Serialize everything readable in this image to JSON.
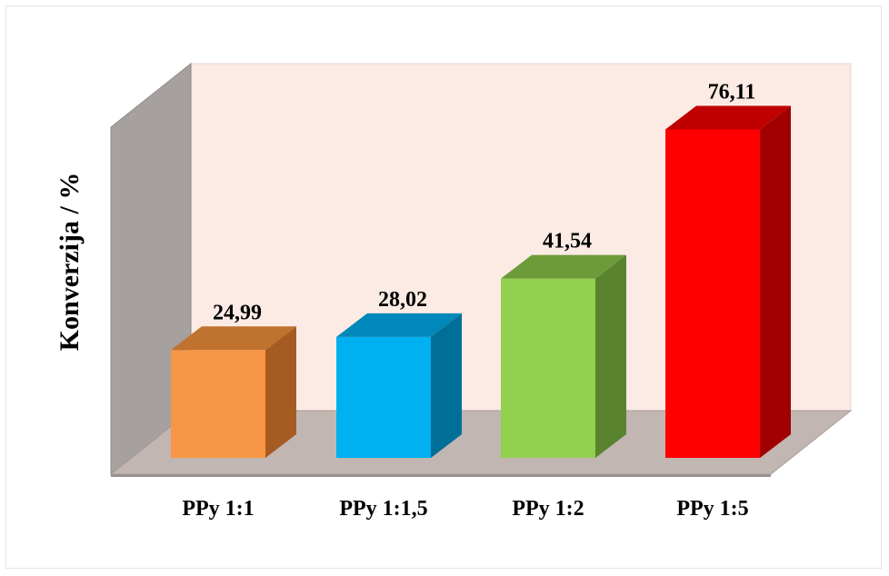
{
  "chart_data": {
    "type": "bar",
    "style": "3d",
    "title": "",
    "xlabel": "",
    "ylabel": "Konverzija / %",
    "ylim": [
      0,
      80
    ],
    "grid": false,
    "legend": "none",
    "categories": [
      "PPy 1:1",
      "PPy 1:1,5",
      "PPy 1:2",
      "PPy 1:5"
    ],
    "values": [
      24.99,
      28.02,
      41.54,
      76.11
    ],
    "data_labels": [
      "24,99",
      "28,02",
      "41,54",
      "76,11"
    ],
    "colors": [
      {
        "front": "#f79646",
        "top": "#c0722f",
        "side": "#a65b22"
      },
      {
        "front": "#00b0f0",
        "top": "#0088ba",
        "side": "#006f98"
      },
      {
        "front": "#92d050",
        "top": "#6d9b3a",
        "side": "#5a8330"
      },
      {
        "front": "#ff0000",
        "top": "#c00000",
        "side": "#a00000"
      }
    ],
    "wall_colors": {
      "back": "#fcebe5",
      "side": "#a6a09e",
      "floor": "#c2b6b2"
    }
  }
}
